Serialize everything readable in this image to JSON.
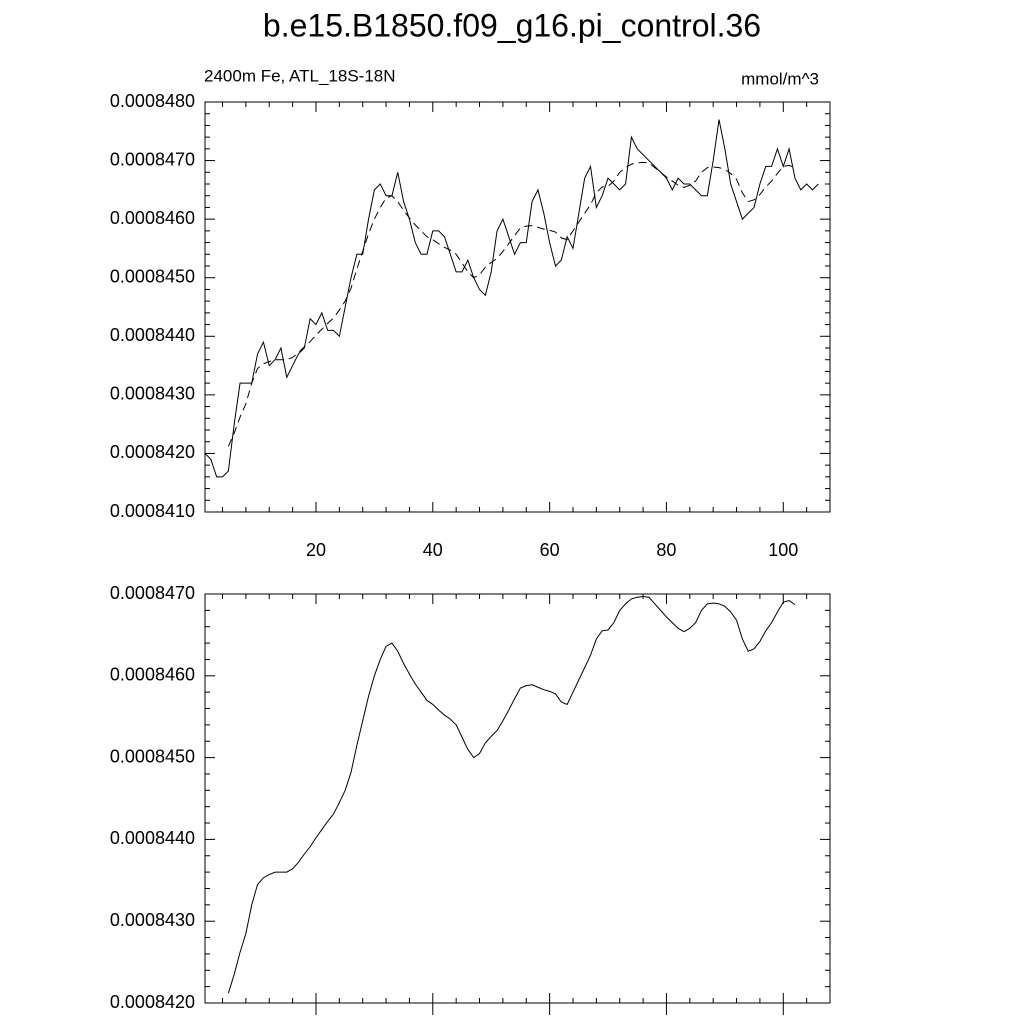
{
  "chart_data": [
    {
      "type": "line",
      "title": "b.e15.B1850.f09_g16.pi_control.36",
      "subtitle_left": "2400m Fe, ATL_18S-18N",
      "subtitle_right": "mmol/m^3",
      "xlim": [
        1,
        108
      ],
      "xticks": [
        20,
        40,
        60,
        80,
        100
      ],
      "ylim": [
        0.000841,
        0.000848
      ],
      "yticks": [
        {
          "value": 0.000841,
          "label": "0.0008410"
        },
        {
          "value": 0.000842,
          "label": "0.0008420"
        },
        {
          "value": 0.000843,
          "label": "0.0008430"
        },
        {
          "value": 0.000844,
          "label": "0.0008440"
        },
        {
          "value": 0.000845,
          "label": "0.0008450"
        },
        {
          "value": 0.000846,
          "label": "0.0008460"
        },
        {
          "value": 0.000847,
          "label": "0.0008470"
        },
        {
          "value": 0.000848,
          "label": "0.0008480"
        }
      ],
      "series": [
        {
          "color": "#000000",
          "dash": false,
          "x": [
            1,
            2,
            3,
            4,
            5,
            6,
            7,
            8,
            9,
            10,
            11,
            12,
            13,
            14,
            15,
            16,
            17,
            18,
            19,
            20,
            21,
            22,
            23,
            24,
            25,
            26,
            27,
            28,
            29,
            30,
            31,
            32,
            33,
            34,
            35,
            36,
            37,
            38,
            39,
            40,
            41,
            42,
            43,
            44,
            45,
            46,
            47,
            48,
            49,
            50,
            51,
            52,
            53,
            54,
            55,
            56,
            57,
            58,
            59,
            60,
            61,
            62,
            63,
            64,
            65,
            66,
            67,
            68,
            69,
            70,
            71,
            72,
            73,
            74,
            75,
            76,
            77,
            78,
            79,
            80,
            81,
            82,
            83,
            84,
            85,
            86,
            87,
            88,
            89,
            90,
            91,
            92,
            93,
            94,
            95,
            96,
            97,
            98,
            99,
            100,
            101,
            102,
            103,
            104,
            105,
            106
          ],
          "values": [
            0.000842,
            0.0008419,
            0.0008416,
            0.0008416,
            0.0008417,
            0.0008425,
            0.0008432,
            0.0008432,
            0.0008432,
            0.0008437,
            0.0008439,
            0.0008435,
            0.0008436,
            0.0008438,
            0.0008433,
            0.0008435,
            0.0008437,
            0.0008438,
            0.0008443,
            0.0008442,
            0.0008444,
            0.0008441,
            0.0008441,
            0.000844,
            0.0008445,
            0.000845,
            0.0008454,
            0.0008454,
            0.000846,
            0.0008465,
            0.0008466,
            0.0008464,
            0.0008464,
            0.0008468,
            0.0008463,
            0.000846,
            0.0008456,
            0.0008454,
            0.0008454,
            0.0008458,
            0.0008458,
            0.0008457,
            0.0008454,
            0.0008451,
            0.0008451,
            0.0008453,
            0.000845,
            0.0008448,
            0.0008447,
            0.0008451,
            0.0008458,
            0.000846,
            0.0008457,
            0.0008454,
            0.0008456,
            0.0008456,
            0.0008463,
            0.0008465,
            0.0008461,
            0.0008456,
            0.0008452,
            0.0008453,
            0.0008457,
            0.0008455,
            0.0008461,
            0.0008467,
            0.0008469,
            0.0008462,
            0.0008464,
            0.0008467,
            0.0008466,
            0.0008465,
            0.0008466,
            0.0008474,
            0.0008472,
            0.0008471,
            0.000847,
            0.0008469,
            0.0008468,
            0.0008467,
            0.0008465,
            0.0008467,
            0.0008466,
            0.0008466,
            0.0008465,
            0.0008464,
            0.0008464,
            0.000847,
            0.0008477,
            0.0008472,
            0.0008466,
            0.0008463,
            0.000846,
            0.0008461,
            0.0008462,
            0.0008466,
            0.0008469,
            0.0008469,
            0.0008472,
            0.0008469,
            0.0008472,
            0.0008467,
            0.0008465,
            0.0008466,
            0.0008465,
            0.0008466
          ]
        },
        {
          "color": "#000000",
          "dash": true,
          "x": [
            5,
            6,
            7,
            8,
            9,
            10,
            11,
            12,
            13,
            14,
            15,
            16,
            17,
            18,
            19,
            20,
            21,
            22,
            23,
            24,
            25,
            26,
            27,
            28,
            29,
            30,
            31,
            32,
            33,
            34,
            35,
            36,
            37,
            38,
            39,
            40,
            41,
            42,
            43,
            44,
            45,
            46,
            47,
            48,
            49,
            50,
            51,
            52,
            53,
            54,
            55,
            56,
            57,
            58,
            59,
            60,
            61,
            62,
            63,
            64,
            65,
            66,
            67,
            68,
            69,
            70,
            71,
            72,
            73,
            74,
            75,
            76,
            77,
            78,
            79,
            80,
            81,
            82,
            83,
            84,
            85,
            86,
            87,
            88,
            89,
            90,
            91,
            92,
            93,
            94,
            95,
            96,
            97,
            98,
            99,
            100,
            101,
            102
          ],
          "values": [
            0.00084212,
            0.00084235,
            0.00084262,
            0.00084285,
            0.0008432,
            0.00084345,
            0.00084353,
            0.00084357,
            0.0008436,
            0.0008436,
            0.0008436,
            0.00084364,
            0.00084372,
            0.00084382,
            0.00084391,
            0.00084402,
            0.00084412,
            0.00084422,
            0.00084431,
            0.00084445,
            0.0008446,
            0.00084482,
            0.00084515,
            0.00084545,
            0.00084575,
            0.000846,
            0.0008462,
            0.00084636,
            0.0008464,
            0.0008463,
            0.00084615,
            0.00084602,
            0.0008459,
            0.0008458,
            0.0008457,
            0.00084565,
            0.00084558,
            0.00084552,
            0.00084547,
            0.0008454,
            0.00084525,
            0.0008451,
            0.000845,
            0.00084505,
            0.00084518,
            0.00084526,
            0.00084533,
            0.00084545,
            0.00084558,
            0.00084572,
            0.00084585,
            0.00084588,
            0.00084589,
            0.00084586,
            0.00084583,
            0.00084581,
            0.00084578,
            0.00084568,
            0.00084565,
            0.0008458,
            0.00084595,
            0.0008461,
            0.00084625,
            0.00084645,
            0.00084655,
            0.00084656,
            0.00084665,
            0.0008468,
            0.00084688,
            0.00084694,
            0.00084696,
            0.00084697,
            0.00084696,
            0.00084688,
            0.0008468,
            0.00084672,
            0.00084665,
            0.00084658,
            0.00084654,
            0.00084658,
            0.00084665,
            0.0008468,
            0.00084688,
            0.00084689,
            0.00084688,
            0.00084685,
            0.00084678,
            0.00084668,
            0.00084645,
            0.0008463,
            0.00084633,
            0.00084642,
            0.00084655,
            0.00084665,
            0.00084678,
            0.0008469,
            0.00084692,
            0.00084687
          ]
        }
      ]
    },
    {
      "type": "line",
      "xlim": [
        1,
        108
      ],
      "xticks": [
        20,
        40,
        60,
        80,
        100
      ],
      "xtick_labels": false,
      "ylim": [
        0.000842,
        0.000847
      ],
      "yticks": [
        {
          "value": 0.000842,
          "label": "0.0008420"
        },
        {
          "value": 0.000843,
          "label": "0.0008430"
        },
        {
          "value": 0.000844,
          "label": "0.0008440"
        },
        {
          "value": 0.000845,
          "label": "0.0008450"
        },
        {
          "value": 0.000846,
          "label": "0.0008460"
        },
        {
          "value": 0.000847,
          "label": "0.0008470"
        }
      ],
      "series": [
        {
          "color": "#000000",
          "dash": false,
          "x": [
            5,
            6,
            7,
            8,
            9,
            10,
            11,
            12,
            13,
            14,
            15,
            16,
            17,
            18,
            19,
            20,
            21,
            22,
            23,
            24,
            25,
            26,
            27,
            28,
            29,
            30,
            31,
            32,
            33,
            34,
            35,
            36,
            37,
            38,
            39,
            40,
            41,
            42,
            43,
            44,
            45,
            46,
            47,
            48,
            49,
            50,
            51,
            52,
            53,
            54,
            55,
            56,
            57,
            58,
            59,
            60,
            61,
            62,
            63,
            64,
            65,
            66,
            67,
            68,
            69,
            70,
            71,
            72,
            73,
            74,
            75,
            76,
            77,
            78,
            79,
            80,
            81,
            82,
            83,
            84,
            85,
            86,
            87,
            88,
            89,
            90,
            91,
            92,
            93,
            94,
            95,
            96,
            97,
            98,
            99,
            100,
            101,
            102
          ],
          "values": [
            0.00084212,
            0.00084235,
            0.00084262,
            0.00084285,
            0.0008432,
            0.00084345,
            0.00084353,
            0.00084357,
            0.0008436,
            0.0008436,
            0.0008436,
            0.00084364,
            0.00084372,
            0.00084382,
            0.00084391,
            0.00084402,
            0.00084412,
            0.00084422,
            0.00084431,
            0.00084445,
            0.0008446,
            0.00084482,
            0.00084515,
            0.00084545,
            0.00084575,
            0.000846,
            0.0008462,
            0.00084636,
            0.0008464,
            0.0008463,
            0.00084615,
            0.00084602,
            0.0008459,
            0.0008458,
            0.0008457,
            0.00084565,
            0.00084558,
            0.00084552,
            0.00084547,
            0.0008454,
            0.00084525,
            0.0008451,
            0.000845,
            0.00084505,
            0.00084518,
            0.00084526,
            0.00084533,
            0.00084545,
            0.00084558,
            0.00084572,
            0.00084585,
            0.00084588,
            0.00084589,
            0.00084586,
            0.00084583,
            0.00084581,
            0.00084578,
            0.00084568,
            0.00084565,
            0.0008458,
            0.00084595,
            0.0008461,
            0.00084625,
            0.00084645,
            0.00084655,
            0.00084656,
            0.00084665,
            0.0008468,
            0.00084688,
            0.00084694,
            0.00084696,
            0.00084697,
            0.00084696,
            0.00084688,
            0.0008468,
            0.00084672,
            0.00084665,
            0.00084658,
            0.00084654,
            0.00084658,
            0.00084665,
            0.0008468,
            0.00084688,
            0.00084689,
            0.00084688,
            0.00084685,
            0.00084678,
            0.00084668,
            0.00084645,
            0.0008463,
            0.00084633,
            0.00084642,
            0.00084655,
            0.00084665,
            0.00084678,
            0.0008469,
            0.00084692,
            0.00084687
          ]
        }
      ]
    }
  ]
}
